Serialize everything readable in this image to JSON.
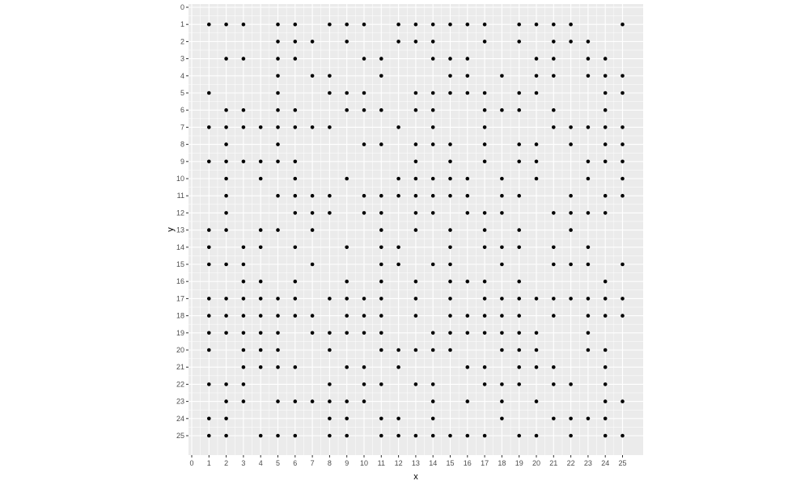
{
  "chart_data": {
    "type": "scatter",
    "title": "",
    "xlabel": "x",
    "ylabel": "y",
    "xlim": [
      0,
      25
    ],
    "ylim": [
      0,
      25
    ],
    "y_reversed": true,
    "x_ticks": [
      0,
      1,
      2,
      3,
      4,
      5,
      6,
      7,
      8,
      9,
      10,
      11,
      12,
      13,
      14,
      15,
      16,
      17,
      18,
      19,
      20,
      21,
      22,
      23,
      24,
      25
    ],
    "y_ticks": [
      0,
      1,
      2,
      3,
      4,
      5,
      6,
      7,
      8,
      9,
      10,
      11,
      12,
      13,
      14,
      15,
      16,
      17,
      18,
      19,
      20,
      21,
      22,
      23,
      24,
      25
    ],
    "grid": true,
    "legend": "none",
    "point_color": "#000000",
    "panel_color": "#EBEBEB",
    "rows": [
      {
        "y": 1,
        "x": [
          1,
          2,
          3,
          5,
          6,
          8,
          9,
          10,
          12,
          13,
          14,
          15,
          16,
          17,
          19,
          20,
          21,
          22,
          25
        ]
      },
      {
        "y": 2,
        "x": [
          5,
          6,
          7,
          9,
          12,
          13,
          14,
          17,
          19,
          21,
          22,
          23
        ]
      },
      {
        "y": 3,
        "x": [
          2,
          3,
          5,
          6,
          10,
          11,
          14,
          15,
          16,
          20,
          21,
          23,
          24
        ]
      },
      {
        "y": 4,
        "x": [
          5,
          7,
          8,
          11,
          15,
          16,
          18,
          20,
          21,
          23,
          24,
          25
        ]
      },
      {
        "y": 5,
        "x": [
          1,
          5,
          8,
          9,
          10,
          13,
          14,
          15,
          16,
          17,
          19,
          20,
          24,
          25
        ]
      },
      {
        "y": 6,
        "x": [
          2,
          3,
          5,
          6,
          9,
          10,
          11,
          13,
          14,
          17,
          18,
          19,
          21,
          24
        ]
      },
      {
        "y": 7,
        "x": [
          1,
          2,
          3,
          4,
          5,
          6,
          7,
          8,
          12,
          14,
          17,
          21,
          22,
          23,
          24,
          25
        ]
      },
      {
        "y": 8,
        "x": [
          2,
          5,
          10,
          11,
          13,
          14,
          15,
          17,
          19,
          20,
          22,
          24,
          25
        ]
      },
      {
        "y": 9,
        "x": [
          1,
          2,
          3,
          4,
          5,
          6,
          13,
          15,
          17,
          19,
          20,
          23,
          24,
          25
        ]
      },
      {
        "y": 10,
        "x": [
          2,
          4,
          6,
          9,
          12,
          13,
          14,
          15,
          16,
          18,
          20,
          23,
          25
        ]
      },
      {
        "y": 11,
        "x": [
          2,
          5,
          6,
          7,
          8,
          10,
          11,
          12,
          13,
          14,
          15,
          16,
          18,
          19,
          22,
          24,
          25
        ]
      },
      {
        "y": 12,
        "x": [
          2,
          6,
          7,
          8,
          10,
          11,
          13,
          14,
          16,
          17,
          18,
          21,
          22,
          23,
          24
        ]
      },
      {
        "y": 13,
        "x": [
          1,
          2,
          4,
          5,
          7,
          11,
          13,
          15,
          17,
          19,
          22
        ]
      },
      {
        "y": 14,
        "x": [
          1,
          3,
          4,
          6,
          9,
          11,
          12,
          15,
          17,
          18,
          19,
          21,
          23
        ]
      },
      {
        "y": 15,
        "x": [
          1,
          2,
          3,
          7,
          11,
          12,
          14,
          15,
          18,
          21,
          22,
          23,
          25
        ]
      },
      {
        "y": 16,
        "x": [
          3,
          4,
          6,
          9,
          11,
          13,
          15,
          16,
          17,
          19,
          24
        ]
      },
      {
        "y": 17,
        "x": [
          1,
          2,
          3,
          4,
          5,
          6,
          8,
          9,
          10,
          11,
          13,
          15,
          17,
          18,
          19,
          20,
          21,
          22,
          23,
          24,
          25
        ]
      },
      {
        "y": 18,
        "x": [
          1,
          2,
          3,
          4,
          5,
          6,
          7,
          9,
          10,
          11,
          13,
          15,
          16,
          17,
          18,
          19,
          21,
          23,
          24,
          25
        ]
      },
      {
        "y": 19,
        "x": [
          1,
          2,
          3,
          4,
          5,
          7,
          8,
          9,
          10,
          11,
          14,
          15,
          16,
          17,
          18,
          19,
          20,
          23
        ]
      },
      {
        "y": 20,
        "x": [
          1,
          3,
          4,
          5,
          8,
          11,
          12,
          13,
          14,
          15,
          18,
          19,
          20,
          23,
          24
        ]
      },
      {
        "y": 21,
        "x": [
          3,
          4,
          5,
          6,
          9,
          10,
          12,
          16,
          17,
          19,
          20,
          21,
          24
        ]
      },
      {
        "y": 22,
        "x": [
          1,
          2,
          3,
          8,
          10,
          11,
          13,
          14,
          17,
          18,
          19,
          21,
          22,
          24
        ]
      },
      {
        "y": 23,
        "x": [
          2,
          3,
          5,
          6,
          7,
          8,
          9,
          10,
          14,
          16,
          18,
          20,
          24,
          25
        ]
      },
      {
        "y": 24,
        "x": [
          1,
          2,
          8,
          9,
          11,
          12,
          14,
          18,
          21,
          22,
          23,
          24
        ]
      },
      {
        "y": 25,
        "x": [
          1,
          2,
          4,
          5,
          6,
          8,
          9,
          11,
          12,
          13,
          14,
          15,
          16,
          17,
          19,
          20,
          22,
          24,
          25
        ]
      }
    ]
  }
}
